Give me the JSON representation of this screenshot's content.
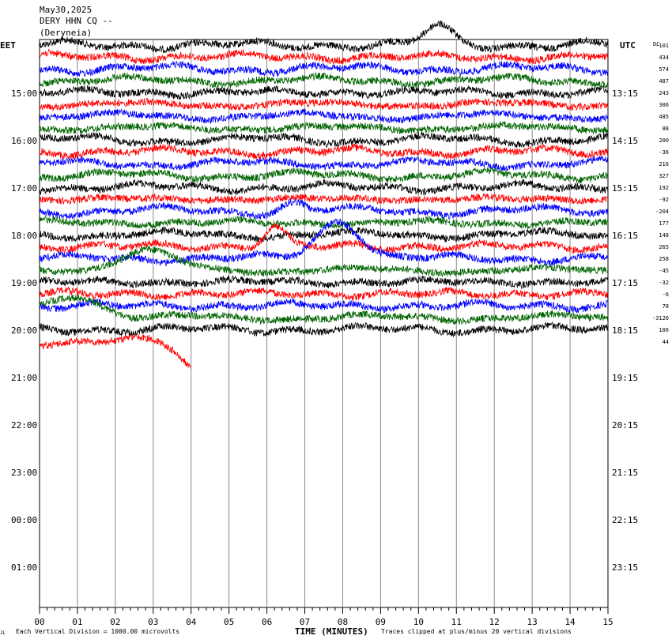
{
  "header": {
    "date": "May30,2025",
    "station": "DERY HHN CQ --",
    "location": "(Deryneia)"
  },
  "timezones": {
    "left": "EET",
    "right": "UTC"
  },
  "dc_label": "DC",
  "footer": {
    "scale_note": "Each Vertical Division = 1000.00 microvolts",
    "xlabel": "TIME (MINUTES)",
    "clip_note": "Traces clipped at plus/minus 20 vertical divisions"
  },
  "chart_data": {
    "type": "line",
    "title": "DERY HHN CQ --",
    "xlabel": "TIME (MINUTES)",
    "ylabel": "",
    "xlim": [
      0,
      15
    ],
    "x_ticks": [
      "00",
      "01",
      "02",
      "03",
      "04",
      "05",
      "06",
      "07",
      "08",
      "09",
      "10",
      "11",
      "12",
      "13",
      "14",
      "15"
    ],
    "left_hour_labels": [
      "15:00",
      "16:00",
      "17:00",
      "18:00",
      "19:00",
      "20:00",
      "21:00",
      "22:00",
      "23:00",
      "00:00",
      "01:00"
    ],
    "right_hour_labels": [
      "13:15",
      "14:15",
      "15:15",
      "16:15",
      "17:15",
      "18:15",
      "19:15",
      "20:15",
      "21:15",
      "22:15",
      "23:15"
    ],
    "trace_colors": [
      "#000000",
      "#ff0000",
      "#0000ff",
      "#006400"
    ],
    "traces_count": 26,
    "dc_offsets": [
      "-101",
      "434",
      "574",
      "487",
      "243",
      "306",
      "485",
      "88",
      "200",
      "-36",
      "216",
      "327",
      "192",
      "-92",
      "-204",
      "177",
      "148",
      "265",
      "258",
      "-45",
      "-32",
      "-6",
      "78",
      "-3120",
      "106",
      "44"
    ],
    "grid": "vertical lines every minute",
    "events": [
      {
        "trace": 0,
        "minute": 10.5,
        "amplitude": 1.6,
        "width": 0.5
      },
      {
        "trace": 14,
        "minute": 6.7,
        "amplitude": 0.7,
        "width": 0.4
      },
      {
        "trace": 17,
        "minute": 6.2,
        "amplitude": 1.6,
        "width": 0.4
      },
      {
        "trace": 18,
        "minute": 7.9,
        "amplitude": 3.2,
        "width": 0.8
      },
      {
        "trace": 19,
        "minute": 2.8,
        "amplitude": 1.6,
        "width": 1.0
      },
      {
        "trace": 23,
        "minute": 0.9,
        "amplitude": 1.9,
        "width": 1.0
      },
      {
        "trace": 25,
        "minute": 4.5,
        "amplitude": -3.5,
        "width": 0.8
      }
    ]
  }
}
